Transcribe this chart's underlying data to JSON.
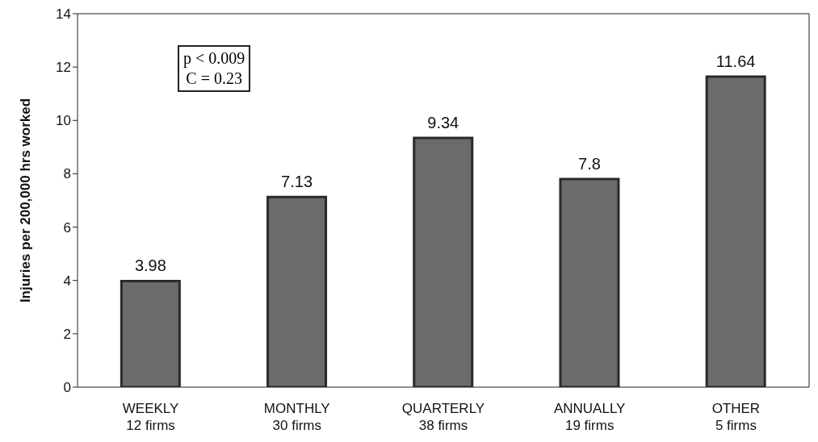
{
  "chart_data": {
    "type": "bar",
    "ylabel": "Injuries per 200,000 hrs worked",
    "categories": [
      "WEEKLY\n12 firms",
      "MONTHLY\n30 firms",
      "QUARTERLY\n38 firms",
      "ANNUALLY\n19 firms",
      "OTHER\n5 firms"
    ],
    "values": [
      3.98,
      7.13,
      9.34,
      7.8,
      11.64
    ],
    "color": "#6b6b6b",
    "ylim": [
      0,
      14
    ],
    "yticks": [
      0,
      2,
      4,
      6,
      8,
      10,
      12,
      14
    ],
    "data_labels": true,
    "annotations": [
      "p < 0.009",
      "C = 0.23"
    ]
  }
}
